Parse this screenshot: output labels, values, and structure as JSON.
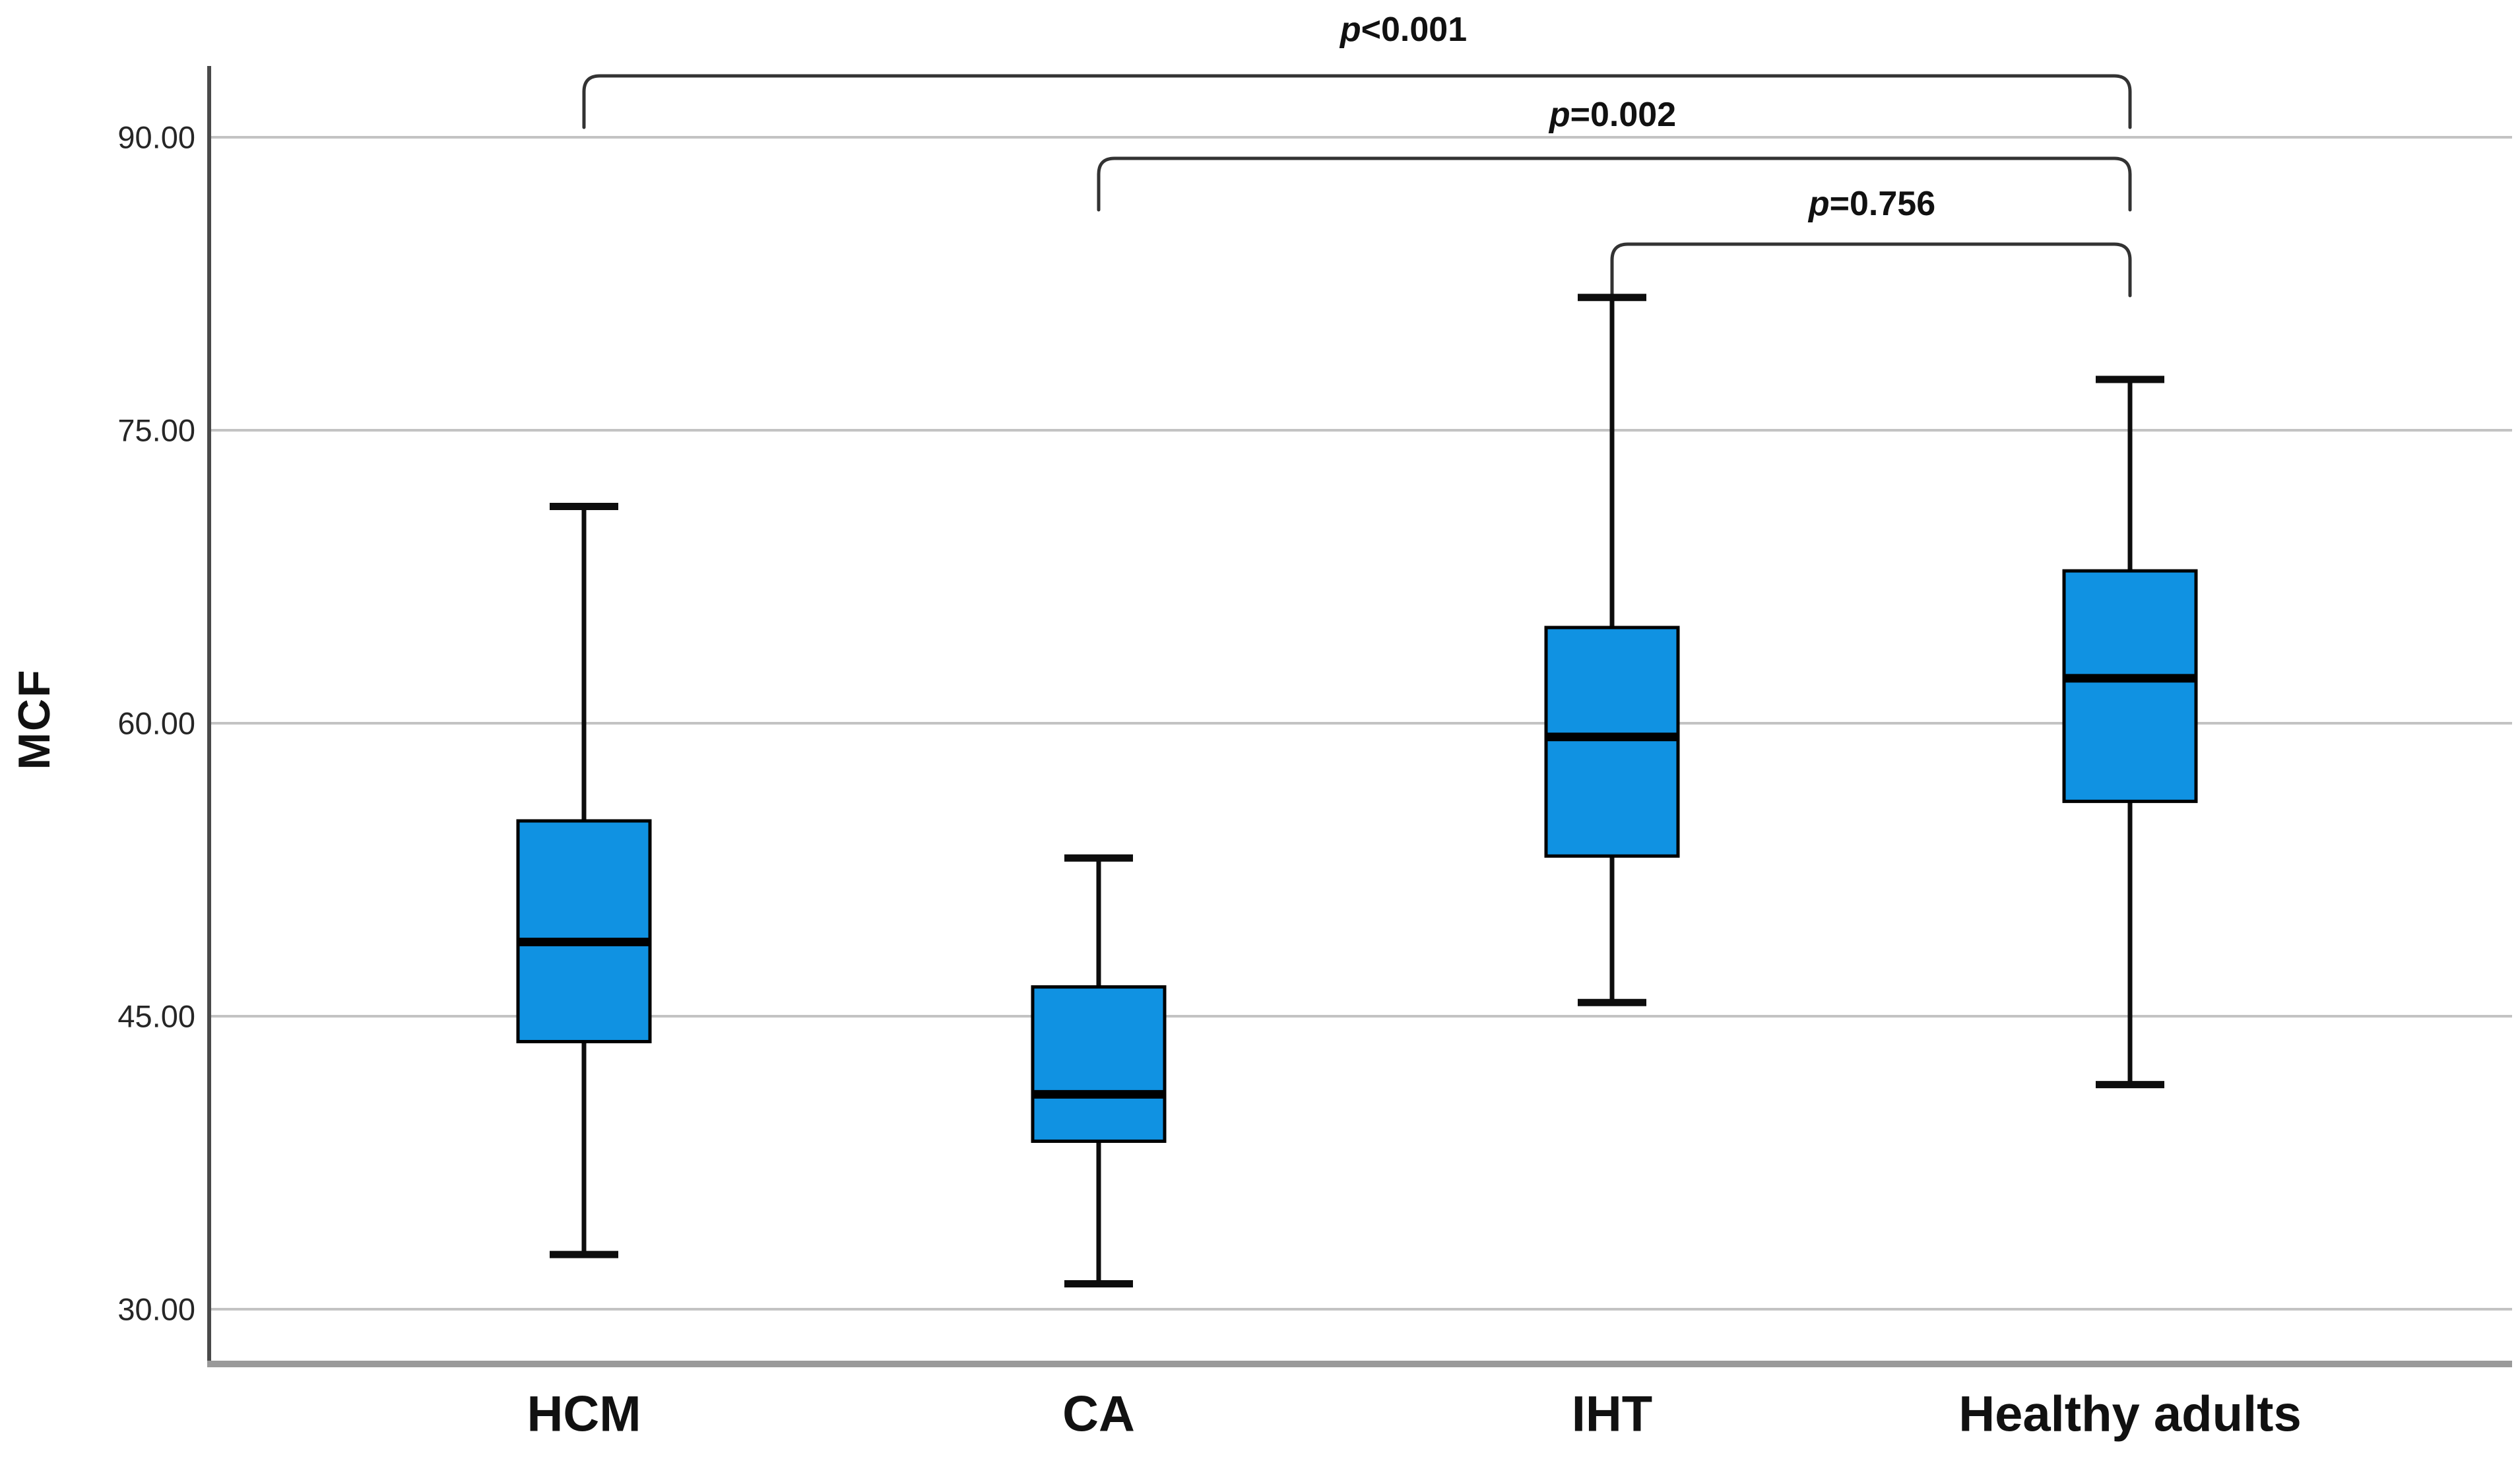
{
  "figure": {
    "background": "#ffffff",
    "box_fill": "#1092E2",
    "box_border": "#000000",
    "median_color": "#000000",
    "whisker_color": "#0d0d0d",
    "grid_color": "#c3c3c3",
    "y_axis_color": "#4a4a4a",
    "baseline_color": "#9a9a9a",
    "bracket_color": "#333333",
    "text_color": "#1a1a1a"
  },
  "chart_data": {
    "type": "boxplot",
    "title": "",
    "xlabel": "",
    "ylabel": "MCF",
    "grid": true,
    "legend": false,
    "ylim": [
      26,
      94
    ],
    "y_ticks": [
      {
        "value": 90,
        "label": "90.00"
      },
      {
        "value": 75,
        "label": "75.00"
      },
      {
        "value": 60,
        "label": "60.00"
      },
      {
        "value": 45,
        "label": "45.00"
      },
      {
        "value": 30,
        "label": "30.00"
      }
    ],
    "categories": [
      "HCM",
      "CA",
      "IHT",
      "Healthy adults"
    ],
    "series": [
      {
        "name": "HCM",
        "min": 32.8,
        "q1": 43.7,
        "median": 48.8,
        "q3": 55.0,
        "max": 71.1
      },
      {
        "name": "CA",
        "min": 31.3,
        "q1": 38.6,
        "median": 41.0,
        "q3": 46.5,
        "max": 53.1
      },
      {
        "name": "IHT",
        "min": 45.7,
        "q1": 53.2,
        "median": 59.3,
        "q3": 64.9,
        "max": 81.8
      },
      {
        "name": "Healthy adults",
        "min": 41.5,
        "q1": 56.0,
        "median": 62.3,
        "q3": 67.8,
        "max": 77.6
      }
    ],
    "comparisons": [
      {
        "from": "HCM",
        "to": "Healthy adults",
        "label": "p<0.001"
      },
      {
        "from": "CA",
        "to": "Healthy adults",
        "label": "p=0.002"
      },
      {
        "from": "IHT",
        "to": "Healthy adults",
        "label": "p=0.756"
      }
    ]
  }
}
